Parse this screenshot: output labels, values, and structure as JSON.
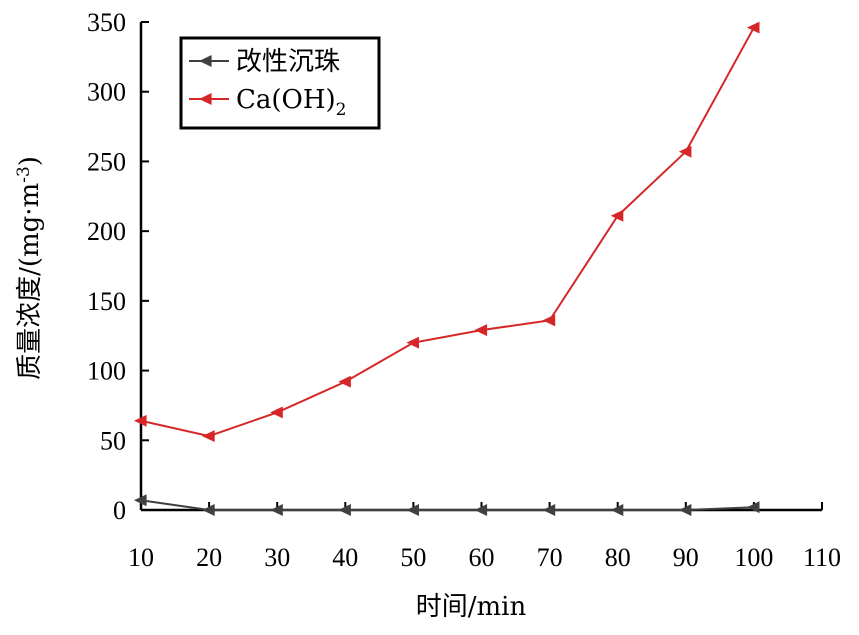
{
  "chart_data": {
    "type": "line",
    "xlabel": "时间/min",
    "ylabel": "质量浓度/(mg·m",
    "ylabel_sup": "-3",
    "ylabel_end": ")",
    "xlim": [
      10,
      110
    ],
    "ylim": [
      0,
      350
    ],
    "xticks": [
      10,
      20,
      30,
      40,
      50,
      60,
      70,
      80,
      90,
      100,
      110
    ],
    "yticks": [
      0,
      50,
      100,
      150,
      200,
      250,
      300,
      350
    ],
    "grid": false,
    "legend_position": "top-left",
    "series": [
      {
        "name": "改性沉珠",
        "color": "#404040",
        "marker": "left-triangle",
        "x": [
          10,
          20,
          30,
          40,
          50,
          60,
          70,
          80,
          90,
          100
        ],
        "values": [
          7,
          0,
          0,
          0,
          0,
          0,
          0,
          0,
          0,
          2
        ]
      },
      {
        "name": "Ca(OH)",
        "name_sub": "2",
        "color": "#d62728",
        "marker": "left-triangle",
        "x": [
          10,
          20,
          30,
          40,
          50,
          60,
          70,
          80,
          90,
          100
        ],
        "values": [
          64,
          53,
          70,
          92,
          120,
          129,
          136,
          211,
          257,
          346
        ]
      }
    ]
  }
}
